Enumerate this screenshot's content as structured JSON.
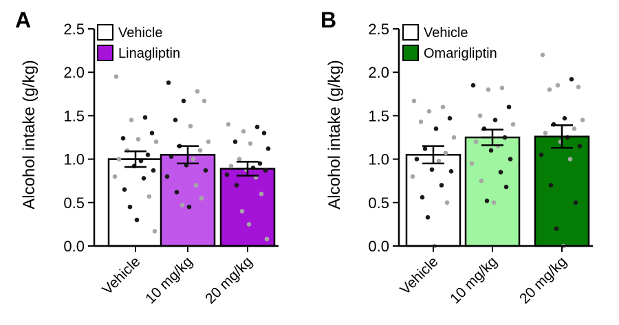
{
  "panels": {
    "a": {
      "label": "A"
    },
    "b": {
      "label": "B"
    }
  },
  "chart_data": [
    {
      "type": "bar",
      "panel": "A",
      "title": "",
      "xlabel": "",
      "ylabel": "Alcohol intake (g/kg)",
      "ylim": [
        0,
        2.5
      ],
      "yticks": [
        "0.0",
        "0.5",
        "1.0",
        "1.5",
        "2.0",
        "2.5"
      ],
      "categories": [
        "Vehicle",
        "10 mg/kg",
        "20 mg/kg"
      ],
      "values": [
        1.0,
        1.05,
        0.89
      ],
      "sem": [
        0.09,
        0.1,
        0.08
      ],
      "bar_colors": [
        "#ffffff",
        "#c157ea",
        "#a512d8"
      ],
      "legend": [
        {
          "label": "Vehicle",
          "color": "#ffffff"
        },
        {
          "label": "Linagliptin",
          "color": "#a512d8"
        }
      ],
      "points": [
        [
          {
            "y": 1.95,
            "c": "g"
          },
          {
            "y": 1.48,
            "c": "k"
          },
          {
            "y": 1.45,
            "c": "g"
          },
          {
            "y": 1.3,
            "c": "k"
          },
          {
            "y": 1.24,
            "c": "k"
          },
          {
            "y": 1.23,
            "c": "g"
          },
          {
            "y": 1.2,
            "c": "g"
          },
          {
            "y": 1.1,
            "c": "g"
          },
          {
            "y": 1.05,
            "c": "k"
          },
          {
            "y": 1.0,
            "c": "g"
          },
          {
            "y": 0.98,
            "c": "k"
          },
          {
            "y": 0.92,
            "c": "k"
          },
          {
            "y": 0.87,
            "c": "k"
          },
          {
            "y": 0.8,
            "c": "g"
          },
          {
            "y": 0.78,
            "c": "k"
          },
          {
            "y": 0.65,
            "c": "k"
          },
          {
            "y": 0.57,
            "c": "g"
          },
          {
            "y": 0.45,
            "c": "k"
          },
          {
            "y": 0.3,
            "c": "k"
          },
          {
            "y": 0.17,
            "c": "g"
          }
        ],
        [
          {
            "y": 1.88,
            "c": "k"
          },
          {
            "y": 1.78,
            "c": "g"
          },
          {
            "y": 1.67,
            "c": "k"
          },
          {
            "y": 1.67,
            "c": "g"
          },
          {
            "y": 1.45,
            "c": "k"
          },
          {
            "y": 1.38,
            "c": "g"
          },
          {
            "y": 1.2,
            "c": "g"
          },
          {
            "y": 1.15,
            "c": "k"
          },
          {
            "y": 1.1,
            "c": "g"
          },
          {
            "y": 1.03,
            "c": "k"
          },
          {
            "y": 1.0,
            "c": "g"
          },
          {
            "y": 0.93,
            "c": "k"
          },
          {
            "y": 0.87,
            "c": "k"
          },
          {
            "y": 0.8,
            "c": "k"
          },
          {
            "y": 0.7,
            "c": "g"
          },
          {
            "y": 0.62,
            "c": "k"
          },
          {
            "y": 0.55,
            "c": "g"
          },
          {
            "y": 0.47,
            "c": "g"
          },
          {
            "y": 0.45,
            "c": "k"
          }
        ],
        [
          {
            "y": 1.4,
            "c": "g"
          },
          {
            "y": 1.37,
            "c": "k"
          },
          {
            "y": 1.32,
            "c": "g"
          },
          {
            "y": 1.3,
            "c": "k"
          },
          {
            "y": 1.2,
            "c": "k"
          },
          {
            "y": 1.18,
            "c": "g"
          },
          {
            "y": 1.12,
            "c": "k"
          },
          {
            "y": 1.0,
            "c": "g"
          },
          {
            "y": 0.95,
            "c": "k"
          },
          {
            "y": 0.92,
            "c": "g"
          },
          {
            "y": 0.9,
            "c": "k"
          },
          {
            "y": 0.88,
            "c": "g"
          },
          {
            "y": 0.87,
            "c": "k"
          },
          {
            "y": 0.82,
            "c": "k"
          },
          {
            "y": 0.79,
            "c": "g"
          },
          {
            "y": 0.7,
            "c": "k"
          },
          {
            "y": 0.6,
            "c": "g"
          },
          {
            "y": 0.4,
            "c": "g"
          },
          {
            "y": 0.25,
            "c": "g"
          },
          {
            "y": 0.08,
            "c": "g"
          }
        ]
      ]
    },
    {
      "type": "bar",
      "panel": "B",
      "title": "",
      "xlabel": "",
      "ylabel": "Alcohol intake (g/kg)",
      "ylim": [
        0,
        2.5
      ],
      "yticks": [
        "0.0",
        "0.5",
        "1.0",
        "1.5",
        "2.0",
        "2.5"
      ],
      "categories": [
        "Vehicle",
        "10 mg/kg",
        "20 mg/kg"
      ],
      "values": [
        1.05,
        1.25,
        1.26
      ],
      "sem": [
        0.1,
        0.09,
        0.13
      ],
      "bar_colors": [
        "#ffffff",
        "#a0f5a0",
        "#057d05"
      ],
      "legend": [
        {
          "label": "Vehicle",
          "color": "#ffffff"
        },
        {
          "label": "Omarigliptin",
          "color": "#057d05"
        }
      ],
      "points": [
        [
          {
            "y": 1.67,
            "c": "g"
          },
          {
            "y": 1.6,
            "c": "g"
          },
          {
            "y": 1.55,
            "c": "g"
          },
          {
            "y": 1.47,
            "c": "k"
          },
          {
            "y": 1.43,
            "c": "g"
          },
          {
            "y": 1.35,
            "c": "k"
          },
          {
            "y": 1.25,
            "c": "g"
          },
          {
            "y": 1.12,
            "c": "k"
          },
          {
            "y": 1.07,
            "c": "g"
          },
          {
            "y": 1.0,
            "c": "k"
          },
          {
            "y": 0.98,
            "c": "g"
          },
          {
            "y": 0.88,
            "c": "k"
          },
          {
            "y": 0.86,
            "c": "k"
          },
          {
            "y": 0.8,
            "c": "g"
          },
          {
            "y": 0.7,
            "c": "k"
          },
          {
            "y": 0.56,
            "c": "k"
          },
          {
            "y": 0.5,
            "c": "g"
          },
          {
            "y": 0.33,
            "c": "k"
          },
          {
            "y": 0.0,
            "c": "g"
          }
        ],
        [
          {
            "y": 1.85,
            "c": "k"
          },
          {
            "y": 1.82,
            "c": "g"
          },
          {
            "y": 1.8,
            "c": "g"
          },
          {
            "y": 1.6,
            "c": "k"
          },
          {
            "y": 1.5,
            "c": "g"
          },
          {
            "y": 1.45,
            "c": "k"
          },
          {
            "y": 1.4,
            "c": "g"
          },
          {
            "y": 1.35,
            "c": "k"
          },
          {
            "y": 1.25,
            "c": "k"
          },
          {
            "y": 1.2,
            "c": "g"
          },
          {
            "y": 1.15,
            "c": "g"
          },
          {
            "y": 1.1,
            "c": "k"
          },
          {
            "y": 1.0,
            "c": "k"
          },
          {
            "y": 0.95,
            "c": "g"
          },
          {
            "y": 0.85,
            "c": "k"
          },
          {
            "y": 0.75,
            "c": "g"
          },
          {
            "y": 0.68,
            "c": "k"
          },
          {
            "y": 0.52,
            "c": "k"
          },
          {
            "y": 0.5,
            "c": "g"
          }
        ],
        [
          {
            "y": 2.2,
            "c": "g"
          },
          {
            "y": 1.92,
            "c": "k"
          },
          {
            "y": 1.85,
            "c": "g"
          },
          {
            "y": 1.83,
            "c": "g"
          },
          {
            "y": 1.8,
            "c": "g"
          },
          {
            "y": 1.47,
            "c": "k"
          },
          {
            "y": 1.45,
            "c": "g"
          },
          {
            "y": 1.4,
            "c": "k"
          },
          {
            "y": 1.35,
            "c": "g"
          },
          {
            "y": 1.3,
            "c": "g"
          },
          {
            "y": 1.25,
            "c": "k"
          },
          {
            "y": 1.2,
            "c": "g"
          },
          {
            "y": 1.15,
            "c": "k"
          },
          {
            "y": 1.05,
            "c": "k"
          },
          {
            "y": 1.0,
            "c": "g"
          },
          {
            "y": 0.7,
            "c": "k"
          },
          {
            "y": 0.5,
            "c": "k"
          },
          {
            "y": 0.2,
            "c": "k"
          },
          {
            "y": 0.0,
            "c": "g"
          }
        ]
      ]
    }
  ]
}
